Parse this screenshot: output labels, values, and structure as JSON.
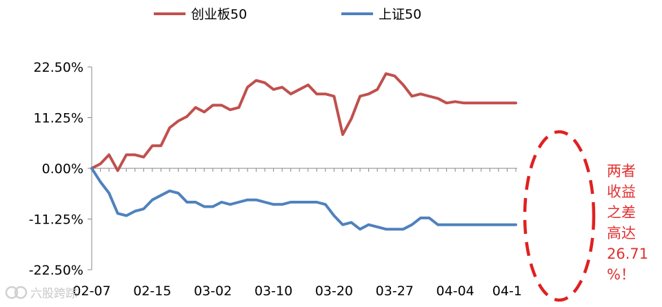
{
  "chart_data": {
    "type": "line",
    "title": "",
    "xlabel": "",
    "ylabel": "",
    "ylim": [
      -22.5,
      22.5
    ],
    "y_ticks": [
      22.5,
      11.25,
      0,
      -11.25,
      -22.5
    ],
    "y_tick_labels": [
      "22.50%",
      "11.25%",
      "0.00%",
      "-11.25%",
      "-22.50%"
    ],
    "x_tick_labels": [
      "02-07",
      "02-15",
      "03-02",
      "03-10",
      "03-20",
      "03-27",
      "04-04",
      "04-1"
    ],
    "x_tick_index": [
      0,
      7,
      14,
      21,
      28,
      35,
      42,
      48
    ],
    "n_points": 50,
    "legend_position": "top",
    "grid": false,
    "series": [
      {
        "name": "创业板50",
        "color": "#c0504d",
        "values": [
          0,
          1,
          3,
          -0.5,
          3,
          3,
          2.5,
          5,
          5,
          9,
          10.5,
          11.5,
          13.5,
          12.5,
          14,
          14,
          13,
          13.5,
          18,
          19.5,
          19,
          17.5,
          18,
          16.5,
          17.5,
          18.5,
          16.5,
          16.5,
          16,
          7.5,
          11,
          16,
          16.5,
          17.5,
          21,
          20.5,
          18.5,
          16,
          16.5,
          16,
          15.5,
          14.5,
          14.8,
          14.5,
          14.5,
          14.5,
          14.5,
          14.5,
          14.5,
          14.5
        ]
      },
      {
        "name": "上证50",
        "color": "#4f81bd",
        "values": [
          0,
          -3,
          -5.5,
          -10,
          -10.5,
          -9.5,
          -9,
          -7,
          -6,
          -5,
          -5.5,
          -7.5,
          -7.5,
          -8.5,
          -8.5,
          -7.5,
          -8,
          -7.5,
          -7,
          -7,
          -7.5,
          -8,
          -8,
          -7.5,
          -7.5,
          -7.5,
          -7.5,
          -8,
          -10.5,
          -12.5,
          -12,
          -13.5,
          -12.5,
          -13,
          -13.5,
          -13.5,
          -13.5,
          -12.5,
          -11,
          -11,
          -12.5,
          -12.5,
          -12.5,
          -12.5,
          -12.5,
          -12.5,
          -12.5,
          -12.5,
          -12.5,
          -12.5
        ]
      }
    ]
  },
  "annotation": {
    "lines": [
      "两者",
      "收益",
      "之差",
      "高达",
      "26.71",
      "%！"
    ],
    "color": "#e03030"
  },
  "watermark": {
    "text": "六股跨踪"
  }
}
